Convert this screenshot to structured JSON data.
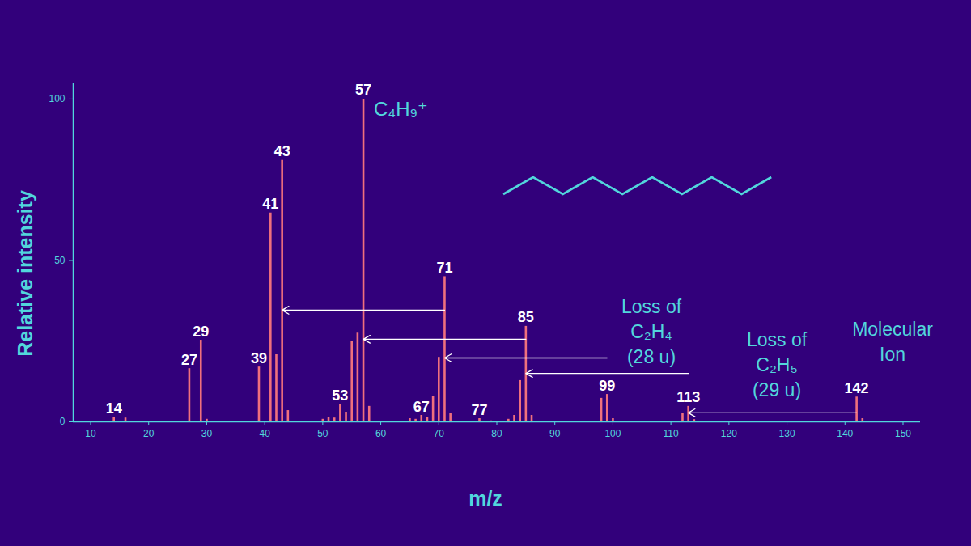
{
  "chart_data": {
    "type": "bar",
    "x_label": "m/z",
    "y_label": "Relative intensity",
    "color": "#f0707d",
    "grid": false,
    "x": [
      14,
      16,
      27,
      29,
      30,
      39,
      41,
      42,
      43,
      44,
      50,
      51,
      52,
      53,
      54,
      55,
      56,
      57,
      58,
      65,
      66,
      67,
      68,
      69,
      70,
      71,
      72,
      77,
      79,
      82,
      83,
      84,
      85,
      86,
      98,
      99,
      100,
      112,
      113,
      114,
      142,
      143
    ],
    "values": [
      1.5,
      1.2,
      16.5,
      25.3,
      0.8,
      17,
      64.7,
      20.8,
      81,
      3.5,
      0.8,
      1.5,
      1.2,
      5.5,
      3,
      25,
      27.5,
      100,
      4.8,
      1,
      0.8,
      2,
      1.3,
      8,
      20,
      45,
      2.5,
      1,
      0.3,
      0.8,
      2,
      12.8,
      29.6,
      2,
      7.3,
      8.5,
      1,
      2.5,
      4.8,
      0.7,
      7.7,
      1
    ],
    "labeled_peaks": [
      14,
      27,
      29,
      39,
      41,
      43,
      53,
      57,
      67,
      71,
      77,
      85,
      99,
      113,
      142
    ],
    "xlim": [
      7,
      153
    ],
    "xticks": [
      10,
      20,
      30,
      40,
      50,
      60,
      70,
      80,
      90,
      100,
      110,
      120,
      130,
      140,
      150
    ],
    "ylim": [
      0,
      105
    ],
    "yticks": [
      0,
      50,
      100
    ],
    "arrows": [
      {
        "from": 71,
        "to": 43,
        "y": 34.6
      },
      {
        "from": 85,
        "to": 57,
        "y": 25.6
      },
      {
        "from": 99,
        "to": 71,
        "y": 19.8
      },
      {
        "from": 113,
        "to": 85,
        "y": 15
      },
      {
        "from": 142,
        "to": 113,
        "y": 2.8
      }
    ],
    "annotations": [
      {
        "lines": [
          "C₄H₉⁺"
        ]
      },
      {
        "lines": [
          "Loss of",
          "C₂H₄",
          "(28 u)"
        ]
      },
      {
        "lines": [
          "Loss of",
          "C₂H₅",
          "(29 u)"
        ]
      },
      {
        "lines": [
          "Molecular",
          "Ion"
        ]
      }
    ]
  }
}
